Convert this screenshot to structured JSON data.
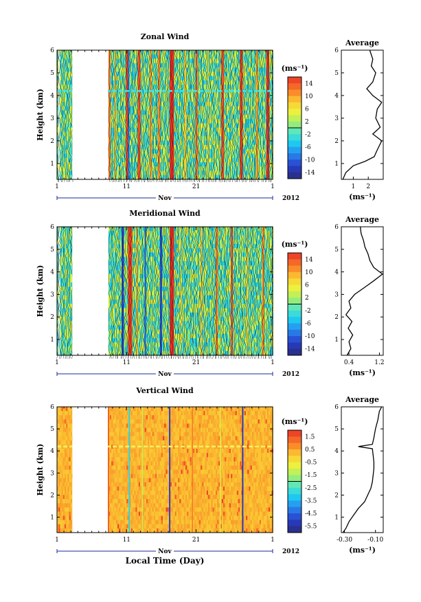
{
  "chart_data": [
    {
      "type": "heatmap",
      "title": "Zonal Wind",
      "xlabel": "",
      "ylabel": "Height (km)",
      "x_ticks": [
        "1",
        "11",
        "21",
        "1"
      ],
      "x_month": "Nov",
      "x_year": "2012",
      "x_range": [
        1,
        32
      ],
      "y_ticks": [
        "1",
        "2",
        "3",
        "4",
        "5",
        "6"
      ],
      "ylim": [
        0.3,
        6
      ],
      "colorbar": {
        "unit": "(ms⁻¹)",
        "labels": [
          "14",
          "10",
          "6",
          "2",
          "-2",
          "-6",
          "-10",
          "-14"
        ],
        "range": [
          -16,
          16
        ]
      },
      "data_gap": [
        3.2,
        8.3
      ],
      "bands": [
        {
          "day": 8.4,
          "width": 0.3,
          "value": 12
        },
        {
          "day": 9.3,
          "width": 0.2,
          "value": 9
        },
        {
          "day": 10.9,
          "width": 0.4,
          "value": 15
        },
        {
          "day": 11.2,
          "width": 0.2,
          "value": -9
        },
        {
          "day": 12.6,
          "width": 0.4,
          "value": 14
        },
        {
          "day": 14.3,
          "width": 0.3,
          "value": 10
        },
        {
          "day": 15.5,
          "width": 0.3,
          "value": 11
        },
        {
          "day": 17.2,
          "width": 0.6,
          "value": 16
        },
        {
          "day": 19.3,
          "width": 0.3,
          "value": 8
        },
        {
          "day": 20.9,
          "width": 0.3,
          "value": 13
        },
        {
          "day": 22.6,
          "width": 0.2,
          "value": 6
        },
        {
          "day": 24.6,
          "width": 0.4,
          "value": 14
        },
        {
          "day": 27.3,
          "width": 0.4,
          "value": 15
        },
        {
          "day": 29.6,
          "width": 0.3,
          "value": 10
        },
        {
          "day": 31.1,
          "width": 0.4,
          "value": 16
        }
      ],
      "profile": {
        "title": "Average",
        "xlabel": "(ms⁻¹)",
        "x_ticks": [
          "1",
          "2"
        ],
        "xlim": [
          0.2,
          3.0
        ],
        "height": [
          0.3,
          0.6,
          0.9,
          1.1,
          1.3,
          1.6,
          2.0,
          2.3,
          2.6,
          3.0,
          3.4,
          3.7,
          4.0,
          4.3,
          4.6,
          5.0,
          5.3,
          5.6,
          6.0
        ],
        "value": [
          0.3,
          0.5,
          1.0,
          1.8,
          2.4,
          2.6,
          2.9,
          2.3,
          2.8,
          2.5,
          2.6,
          2.9,
          2.3,
          1.9,
          2.3,
          2.5,
          2.2,
          2.3,
          2.1
        ]
      }
    },
    {
      "type": "heatmap",
      "title": "Meridional Wind",
      "xlabel": "",
      "ylabel": "Height (km)",
      "x_ticks": [
        "1",
        "11",
        "21",
        "1"
      ],
      "x_month": "Nov",
      "x_year": "2012",
      "x_range": [
        1,
        32
      ],
      "y_ticks": [
        "1",
        "2",
        "3",
        "4",
        "5",
        "6"
      ],
      "ylim": [
        0.3,
        6
      ],
      "colorbar": {
        "unit": "(ms⁻¹)",
        "labels": [
          "14",
          "10",
          "6",
          "2",
          "-2",
          "-6",
          "-10",
          "-14"
        ],
        "range": [
          -16,
          16
        ]
      },
      "data_gap": [
        3.2,
        8.3
      ],
      "bands": [
        {
          "day": 10.3,
          "width": 0.3,
          "value": -12
        },
        {
          "day": 11.2,
          "width": 0.6,
          "value": 15
        },
        {
          "day": 12.4,
          "width": 0.2,
          "value": 9
        },
        {
          "day": 13.6,
          "width": 0.2,
          "value": -10
        },
        {
          "day": 15.8,
          "width": 0.3,
          "value": -11
        },
        {
          "day": 17.2,
          "width": 0.6,
          "value": 16
        },
        {
          "day": 18.6,
          "width": 0.2,
          "value": 7
        },
        {
          "day": 21.7,
          "width": 0.2,
          "value": 9
        },
        {
          "day": 23.8,
          "width": 0.3,
          "value": 12
        },
        {
          "day": 26.0,
          "width": 0.3,
          "value": 14
        },
        {
          "day": 28.3,
          "width": 0.2,
          "value": 8
        },
        {
          "day": 30.5,
          "width": 0.3,
          "value": 11
        }
      ],
      "profile": {
        "title": "Average",
        "xlabel": "(ms⁻¹)",
        "x_ticks": [
          "0.4",
          "1.2"
        ],
        "xlim": [
          0.2,
          1.3
        ],
        "height": [
          0.3,
          0.6,
          0.9,
          1.2,
          1.5,
          1.8,
          2.1,
          2.4,
          2.7,
          3.0,
          3.3,
          3.6,
          3.9,
          4.2,
          4.5,
          4.8,
          5.1,
          5.4,
          5.7,
          6.0
        ],
        "value": [
          0.35,
          0.45,
          0.4,
          0.5,
          0.38,
          0.48,
          0.32,
          0.45,
          0.4,
          0.55,
          0.8,
          1.05,
          1.28,
          1.05,
          0.95,
          0.9,
          0.82,
          0.78,
          0.72,
          0.7
        ]
      }
    },
    {
      "type": "heatmap",
      "title": "Vertical Wind",
      "xlabel": "Local Time (Day)",
      "ylabel": "Height (km)",
      "x_ticks": [
        "1",
        "11",
        "21",
        "1"
      ],
      "x_month": "Nov",
      "x_year": "2012",
      "x_range": [
        1,
        32
      ],
      "y_ticks": [
        "1",
        "2",
        "3",
        "4",
        "5",
        "6"
      ],
      "ylim": [
        0.3,
        6
      ],
      "colorbar": {
        "unit": "(ms⁻¹)",
        "labels": [
          "1.5",
          "0.5",
          "-0.5",
          "-1.5",
          "-2.5",
          "-3.5",
          "-4.5",
          "-5.5"
        ],
        "range": [
          -6,
          2
        ]
      },
      "data_gap": [
        3.2,
        8.3
      ],
      "background_value": 0.3,
      "bands": [
        {
          "day": 8.3,
          "width": 0.2,
          "value": 1.4
        },
        {
          "day": 11.3,
          "width": 0.2,
          "value": -3.0
        },
        {
          "day": 13.2,
          "width": 0.1,
          "value": -1.2
        },
        {
          "day": 17.1,
          "width": 0.2,
          "value": -5.0
        },
        {
          "day": 20.4,
          "width": 0.1,
          "value": 1.0
        },
        {
          "day": 24.4,
          "width": 0.1,
          "value": -1.0
        },
        {
          "day": 27.6,
          "width": 0.2,
          "value": -5.2
        }
      ],
      "profile": {
        "title": "Average",
        "xlabel": "(ms⁻¹)",
        "x_ticks": [
          "-0.30",
          "-0.10"
        ],
        "xlim": [
          -0.32,
          -0.05
        ],
        "height": [
          0.3,
          0.5,
          0.8,
          1.1,
          1.4,
          1.7,
          2.0,
          2.3,
          2.6,
          2.9,
          3.2,
          3.5,
          3.8,
          4.1,
          4.2,
          4.3,
          4.6,
          5.0,
          5.4,
          5.8,
          6.0
        ],
        "value": [
          -0.31,
          -0.29,
          -0.27,
          -0.24,
          -0.21,
          -0.17,
          -0.15,
          -0.13,
          -0.12,
          -0.115,
          -0.11,
          -0.11,
          -0.115,
          -0.12,
          -0.21,
          -0.12,
          -0.11,
          -0.1,
          -0.085,
          -0.075,
          -0.06
        ]
      }
    }
  ]
}
